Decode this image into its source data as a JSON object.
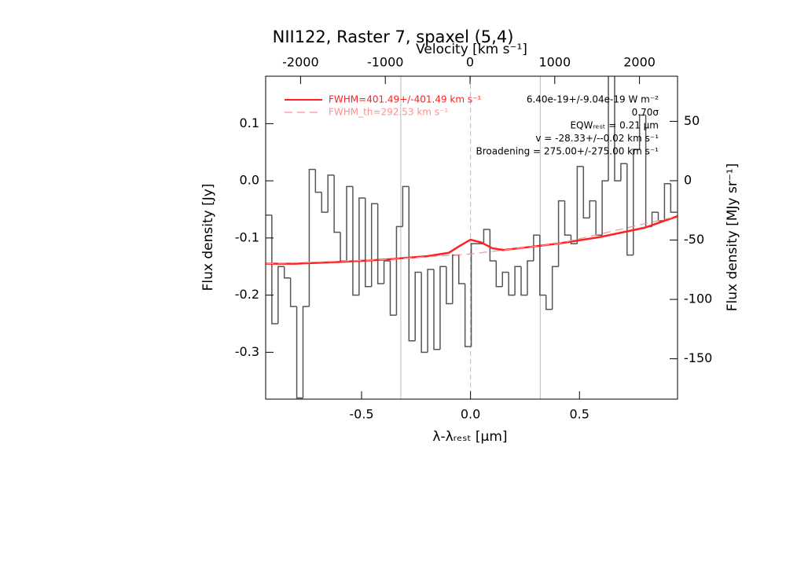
{
  "chart_data": {
    "type": "step",
    "title": "NII122, Raster 7, spaxel (5,4)",
    "xlabel": "λ-λᵣₑₛₜ [μm]",
    "ylabel": "Flux density [Jy]",
    "y2label": "Flux density [MJy sr⁻¹]",
    "x2label": "Velocity [km s⁻¹]",
    "xlim": [
      -0.94,
      0.95
    ],
    "ylim": [
      -0.382,
      0.183
    ],
    "y2lim": [
      -184,
      88
    ],
    "x2lim": [
      -2412,
      2449
    ],
    "xticks": [
      -0.5,
      {
        "value": 0,
        "label": "0.0"
      },
      0.5
    ],
    "yticks": [
      0.1,
      {
        "value": 0,
        "label": "0.0"
      },
      -0.1,
      -0.2,
      -0.3
    ],
    "y2ticks": [
      50,
      0,
      -50,
      -100,
      -150
    ],
    "x2ticks": [
      -2000,
      -1000,
      0,
      1000,
      2000
    ],
    "vlines": [
      {
        "x": -0.32,
        "style": "solid"
      },
      {
        "x": 0,
        "style": "dashed"
      },
      {
        "x": 0.32,
        "style": "solid"
      }
    ],
    "series": [
      {
        "color": "#555555",
        "style": "step",
        "x": [
          -0.926,
          -0.8974,
          -0.8688,
          -0.8402,
          -0.8116,
          -0.783,
          -0.7544,
          -0.7258,
          -0.6972,
          -0.6686,
          -0.64,
          -0.6114,
          -0.5828,
          -0.5542,
          -0.5256,
          -0.497,
          -0.4684,
          -0.4398,
          -0.4112,
          -0.3826,
          -0.354,
          -0.3254,
          -0.2968,
          -0.2682,
          -0.2396,
          -0.211,
          -0.1824,
          -0.1538,
          -0.1252,
          -0.0966,
          -0.068,
          -0.0394,
          -0.0108,
          0.0178,
          0.0464,
          0.075,
          0.1036,
          0.1322,
          0.1608,
          0.1894,
          0.218,
          0.2466,
          0.2752,
          0.3038,
          0.3324,
          0.361,
          0.3896,
          0.4182,
          0.4468,
          0.4754,
          0.504,
          0.5326,
          0.5612,
          0.5898,
          0.6184,
          0.647,
          0.6756,
          0.7042,
          0.7328,
          0.7614,
          0.79,
          0.8186,
          0.8472,
          0.8758,
          0.9044,
          0.933
        ],
        "values": [
          -0.06,
          -0.25,
          -0.15,
          -0.17,
          -0.22,
          -0.38,
          -0.22,
          0.02,
          -0.02,
          -0.055,
          0.01,
          -0.09,
          -0.14,
          -0.01,
          -0.2,
          -0.03,
          -0.185,
          -0.04,
          -0.18,
          -0.14,
          -0.235,
          -0.08,
          -0.01,
          -0.28,
          -0.16,
          -0.3,
          -0.155,
          -0.295,
          -0.15,
          -0.215,
          -0.13,
          -0.18,
          -0.29,
          -0.11,
          -0.11,
          -0.085,
          -0.14,
          -0.185,
          -0.16,
          -0.2,
          -0.15,
          -0.2,
          -0.14,
          -0.095,
          -0.2,
          -0.225,
          -0.15,
          -0.035,
          -0.095,
          -0.11,
          0.025,
          -0.065,
          -0.035,
          -0.095,
          0,
          0.19,
          0,
          0.03,
          -0.13,
          0.055,
          0.115,
          -0.08,
          -0.055,
          -0.07,
          -0.005,
          -0.055
        ]
      },
      {
        "name": "FWHM=401.49+/-401.49 km s⁻¹",
        "color": "#ff2020",
        "style": "solid",
        "x": [
          -0.94,
          -0.8,
          -0.6,
          -0.4,
          -0.2,
          -0.1,
          -0.05,
          0,
          0.05,
          0.1,
          0.15,
          0.2,
          0.4,
          0.6,
          0.8,
          0.95
        ],
        "values": [
          -0.145,
          -0.145,
          -0.142,
          -0.138,
          -0.132,
          -0.126,
          -0.114,
          -0.103,
          -0.108,
          -0.118,
          -0.121,
          -0.119,
          -0.11,
          -0.098,
          -0.082,
          -0.062
        ]
      },
      {
        "name": "FWHM_th=292.53 km s⁻¹",
        "color": "#ff9090",
        "style": "dashed",
        "x": [
          -0.94,
          -0.4,
          0,
          0.4,
          0.95
        ],
        "values": [
          -0.145,
          -0.138,
          -0.128,
          -0.11,
          -0.062
        ]
      }
    ],
    "annotations": [
      "6.40e-19+/-9.04e-19 W m⁻²",
      "0.70σ",
      "EQWᵣₑₛₜ = 0.21 μm",
      "v = -28.33+/--0.02 km s⁻¹",
      "Broadening = 275.00+/-275.00 km s⁻¹"
    ]
  }
}
